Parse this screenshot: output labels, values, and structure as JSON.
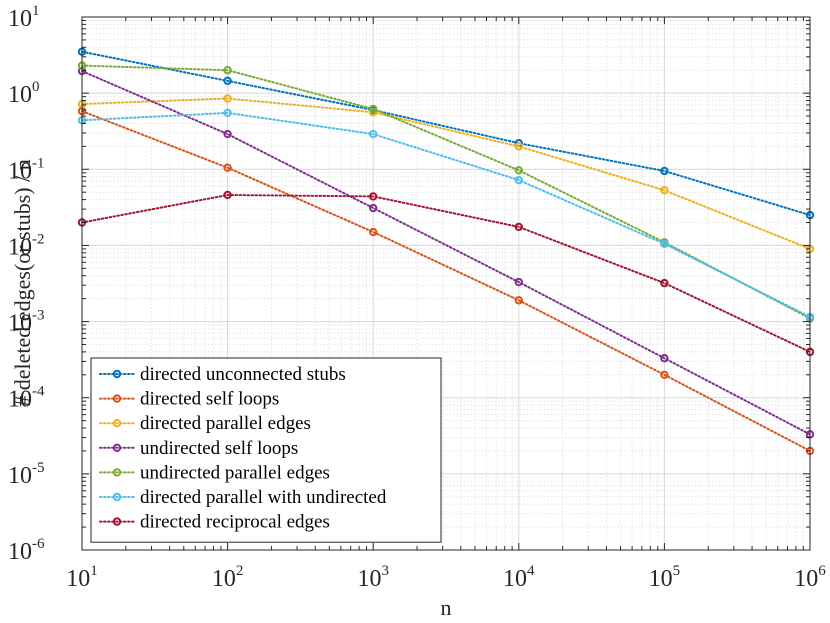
{
  "chart_data": {
    "type": "line",
    "xscale": "log",
    "yscale": "log",
    "xlabel": "n",
    "ylabel": "# deleted edges(or stubs) / n",
    "xlim": [
      10,
      1000000
    ],
    "ylim": [
      1e-06,
      10
    ],
    "grid": true,
    "minor_grid": true,
    "legend_position": "bottom-left",
    "x": [
      10,
      100,
      1000,
      10000,
      100000,
      1000000
    ],
    "x_tick_labels": [
      {
        "base": "10",
        "exp": "1"
      },
      {
        "base": "10",
        "exp": "2"
      },
      {
        "base": "10",
        "exp": "3"
      },
      {
        "base": "10",
        "exp": "4"
      },
      {
        "base": "10",
        "exp": "5"
      },
      {
        "base": "10",
        "exp": "6"
      }
    ],
    "y_tick_labels": [
      {
        "base": "10",
        "exp": "-6"
      },
      {
        "base": "10",
        "exp": "-5"
      },
      {
        "base": "10",
        "exp": "-4"
      },
      {
        "base": "10",
        "exp": "-3"
      },
      {
        "base": "10",
        "exp": "-2"
      },
      {
        "base": "10",
        "exp": "-1"
      },
      {
        "base": "10",
        "exp": "0"
      },
      {
        "base": "10",
        "exp": "1"
      }
    ],
    "series": [
      {
        "name": "directed unconnected stubs",
        "color": "#0072BD",
        "values": [
          3.5,
          1.45,
          0.6,
          0.22,
          0.095,
          0.025
        ]
      },
      {
        "name": "directed self loops",
        "color": "#D95319",
        "values": [
          0.58,
          0.105,
          0.015,
          0.0019,
          0.0002,
          2e-05
        ]
      },
      {
        "name": "directed parallel edges",
        "color": "#EDB120",
        "values": [
          0.72,
          0.85,
          0.56,
          0.2,
          0.053,
          0.009
        ]
      },
      {
        "name": "undirected self loops",
        "color": "#7E2F8E",
        "values": [
          1.95,
          0.29,
          0.031,
          0.0033,
          0.00033,
          3.3e-05
        ]
      },
      {
        "name": "undirected parallel edges",
        "color": "#77AC30",
        "values": [
          2.3,
          2.0,
          0.62,
          0.097,
          0.011,
          0.0011
        ]
      },
      {
        "name": "directed parallel with undirected",
        "color": "#4DBEEE",
        "values": [
          0.44,
          0.55,
          0.29,
          0.072,
          0.0105,
          0.00115
        ]
      },
      {
        "name": "directed reciprocal edges",
        "color": "#A2142F",
        "values": [
          0.02,
          0.046,
          0.044,
          0.0175,
          0.0032,
          0.0004
        ]
      }
    ]
  }
}
